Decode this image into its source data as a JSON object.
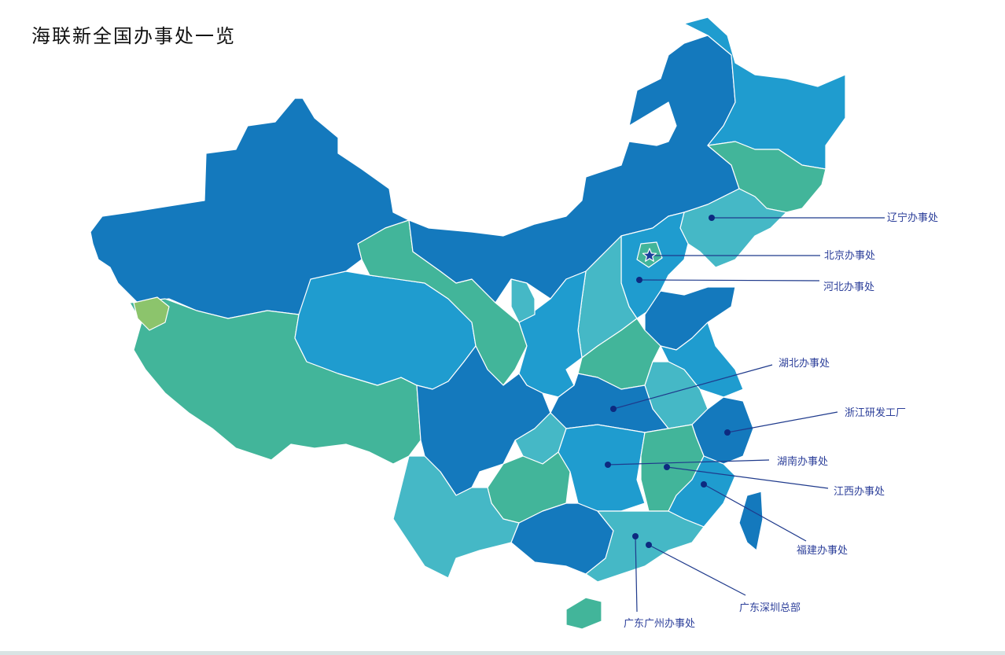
{
  "title": "海联新全国办事处一览",
  "colors": {
    "dark_blue": "#1479bd",
    "mid_blue": "#1f9ccf",
    "teal": "#45b8c6",
    "green": "#42b59a",
    "light_green": "#8cc46c",
    "marker": "#0d2a80",
    "label": "#2c3f9a"
  },
  "offices": [
    {
      "label": "辽宁办事处",
      "marker": "dot"
    },
    {
      "label": "北京办事处",
      "marker": "star"
    },
    {
      "label": "河北办事处",
      "marker": "dot"
    },
    {
      "label": "湖北办事处",
      "marker": "dot"
    },
    {
      "label": "浙江研发工厂",
      "marker": "dot"
    },
    {
      "label": "湖南办事处",
      "marker": "dot"
    },
    {
      "label": "江西办事处",
      "marker": "dot"
    },
    {
      "label": "福建办事处",
      "marker": "dot"
    },
    {
      "label": "广东深圳总部",
      "marker": "dot"
    },
    {
      "label": "广东广州办事处",
      "marker": "dot"
    }
  ]
}
